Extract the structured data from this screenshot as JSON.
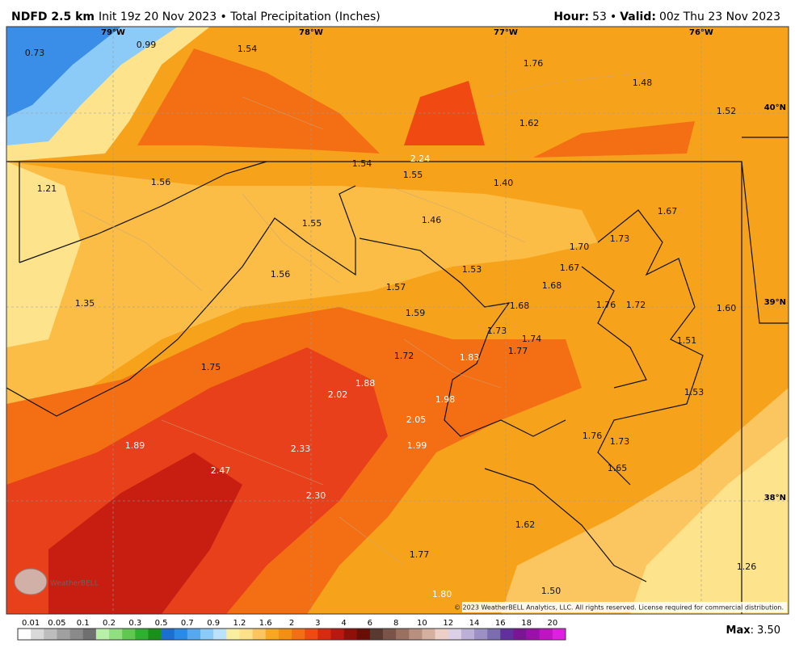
{
  "header": {
    "model": "NDFD 2.5 km",
    "info": "Init 19z 20 Nov 2023 • Total Precipitation (Inches)",
    "hour_label": "Hour:",
    "hour": "53",
    "separator": "•",
    "valid_label": "Valid:",
    "valid": "00z Thu 23 Nov 2023"
  },
  "map": {
    "longitudes": [
      "79°W",
      "78°W",
      "77°W",
      "76°W"
    ],
    "latitudes": [
      "40°N",
      "39°N",
      "38°N"
    ],
    "values": [
      "0.73",
      "0.99",
      "1.54",
      "1.76",
      "1.48",
      "1.52",
      "1.62",
      "2.24",
      "1.54",
      "1.55",
      "1.40",
      "1.21",
      "1.56",
      "1.55",
      "1.46",
      "1.67",
      "1.70",
      "1.73",
      "1.53",
      "1.67",
      "1.56",
      "1.57",
      "1.68",
      "1.68",
      "1.76",
      "1.72",
      "1.60",
      "1.35",
      "1.59",
      "1.73",
      "1.74",
      "1.51",
      "1.77",
      "1.72",
      "1.83",
      "1.75",
      "1.88",
      "1.53",
      "2.02",
      "1.98",
      "2.05",
      "1.76",
      "1.73",
      "1.89",
      "1.99",
      "2.33",
      "2.47",
      "1.65",
      "2.30",
      "1.62",
      "1.77",
      "1.26",
      "1.50",
      "1.80"
    ],
    "logo": "WeatherBELL",
    "copyright": "© 2023 WeatherBELL Analytics, LLC. All rights reserved. License required for commercial distribution."
  },
  "legend": {
    "labels": [
      "0.01",
      "0.05",
      "0.1",
      "0.2",
      "0.3",
      "0.5",
      "0.7",
      "0.9",
      "1.2",
      "1.6",
      "2",
      "3",
      "4",
      "6",
      "8",
      "10",
      "12",
      "14",
      "16",
      "18",
      "20"
    ],
    "colors": [
      "#ffffff",
      "#d9d9d9",
      "#bdbdbd",
      "#a0a0a0",
      "#8a8a8a",
      "#707070",
      "#b8f0a8",
      "#90e080",
      "#60c850",
      "#30b030",
      "#1a8f1a",
      "#1c6ed0",
      "#2a8ae8",
      "#58a8f0",
      "#8ccaf8",
      "#bce2fb",
      "#f8f0a0",
      "#fde08a",
      "#fbc560",
      "#f8a820",
      "#f39014",
      "#f46f14",
      "#f04a12",
      "#d82a10",
      "#b81810",
      "#8e1008",
      "#6a0d06",
      "#5a3a30",
      "#7a5448",
      "#9a7060",
      "#b89080",
      "#d4b0a0",
      "#ecd0c8",
      "#dcd0e8",
      "#bcb0d8",
      "#9c90c4",
      "#7c6cb0",
      "#62309c",
      "#7a1694",
      "#9a10a8",
      "#c014c4",
      "#e020e0"
    ],
    "max_label": "Max",
    "max": "3.50"
  }
}
